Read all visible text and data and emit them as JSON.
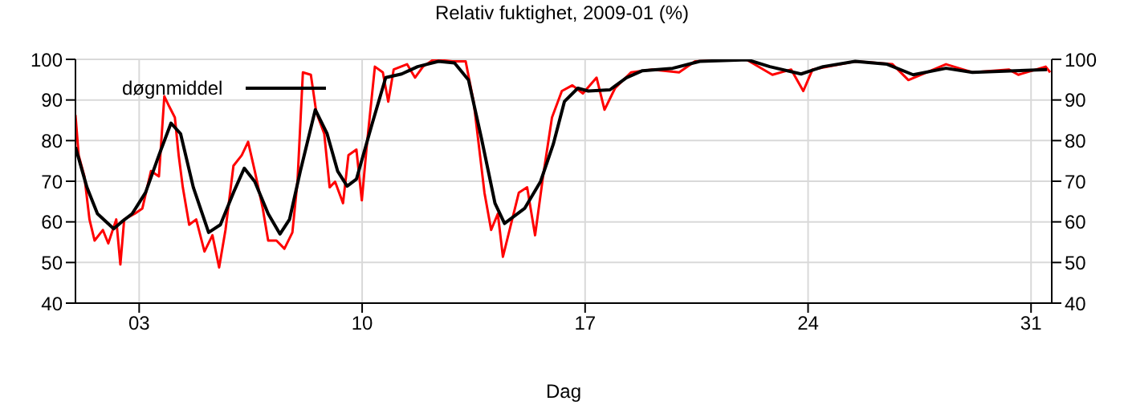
{
  "chart_data": {
    "type": "line",
    "title": "Relativ fuktighet, 2009-01 (%)",
    "xlabel": "Dag",
    "xlim": [
      1,
      31.65
    ],
    "xticks": [
      {
        "value": 3,
        "label": "03"
      },
      {
        "value": 10,
        "label": "10"
      },
      {
        "value": 17,
        "label": "17"
      },
      {
        "value": 24,
        "label": "24"
      },
      {
        "value": 31,
        "label": "31"
      }
    ],
    "ylim": [
      40,
      100
    ],
    "yticks": [
      40,
      50,
      60,
      70,
      80,
      90,
      100
    ],
    "y2lim": [
      40,
      100
    ],
    "y2ticks": [
      40,
      50,
      60,
      70,
      80,
      90,
      100
    ],
    "grid": true,
    "legend": "top left",
    "line_style": "solid",
    "marker": "none",
    "series": [
      {
        "color": "#ff0000",
        "x": [
          1.0,
          1.1,
          1.28,
          1.44,
          1.6,
          1.86,
          2.03,
          2.28,
          2.41,
          2.53,
          2.86,
          3.1,
          3.37,
          3.62,
          3.79,
          3.95,
          4.12,
          4.24,
          4.37,
          4.57,
          4.79,
          5.05,
          5.3,
          5.51,
          5.71,
          5.96,
          6.22,
          6.42,
          6.63,
          6.88,
          7.05,
          7.31,
          7.56,
          7.81,
          7.97,
          8.14,
          8.39,
          8.56,
          8.81,
          8.98,
          9.15,
          9.4,
          9.57,
          9.82,
          9.99,
          10.15,
          10.4,
          10.65,
          10.82,
          10.99,
          11.41,
          11.66,
          11.91,
          12.25,
          12.83,
          13.25,
          13.5,
          13.84,
          14.05,
          14.26,
          14.42,
          14.67,
          14.92,
          15.18,
          15.43,
          15.68,
          15.96,
          16.27,
          16.6,
          16.93,
          17.36,
          17.61,
          17.94,
          18.44,
          19.11,
          19.95,
          20.45,
          22.05,
          22.88,
          23.47,
          23.85,
          24.14,
          25.48,
          26.65,
          27.15,
          28.33,
          29.16,
          30.3,
          30.6,
          31.46,
          31.6
        ],
        "values": [
          86.3,
          76.4,
          71.2,
          60.6,
          55.4,
          58,
          54.7,
          60.6,
          49.5,
          60.6,
          62,
          63.3,
          72.5,
          71.2,
          90.9,
          88.3,
          85.7,
          76.4,
          68.5,
          59.3,
          60.6,
          52.7,
          56.7,
          48.8,
          58,
          73.8,
          76.4,
          79.7,
          72.5,
          63.3,
          55.4,
          55.4,
          53.4,
          57.4,
          69.9,
          96.8,
          96.2,
          87,
          81.7,
          68.5,
          69.9,
          64.6,
          76.4,
          77.8,
          65.3,
          79.1,
          98.2,
          96.8,
          89.6,
          97.5,
          98.8,
          95.5,
          98.2,
          100,
          99.5,
          99.5,
          89.6,
          67.2,
          58,
          62,
          51.4,
          59.3,
          67.2,
          68.5,
          56.7,
          71.2,
          85.7,
          92.2,
          93.6,
          91.6,
          95.5,
          87.6,
          92.9,
          96.8,
          97.5,
          96.8,
          99.5,
          100,
          96.2,
          97.5,
          92.2,
          97.5,
          99.5,
          98.8,
          94.9,
          98.8,
          96.8,
          97.5,
          96.2,
          98.2,
          96.8
        ]
      },
      {
        "name": "døgnmiddel",
        "color": "#000000",
        "x": [
          1.0,
          1.36,
          1.69,
          2.2,
          2.45,
          2.78,
          3.2,
          3.62,
          4.0,
          4.3,
          4.7,
          5.18,
          5.55,
          5.96,
          6.3,
          6.63,
          7.05,
          7.42,
          7.72,
          8.06,
          8.53,
          8.9,
          9.23,
          9.53,
          9.82,
          10.32,
          10.74,
          11.24,
          11.74,
          12.4,
          12.9,
          13.34,
          13.75,
          14.17,
          14.47,
          15.1,
          15.6,
          16.0,
          16.35,
          16.77,
          17.1,
          17.78,
          18.3,
          18.8,
          19.75,
          20.6,
          22.1,
          22.8,
          23.78,
          24.47,
          25.48,
          26.48,
          27.3,
          28.33,
          29.16,
          30.5,
          31.5
        ],
        "values": [
          78.4,
          68.5,
          62,
          58.3,
          60,
          62,
          67.2,
          76.4,
          84.3,
          81.7,
          68.5,
          57.4,
          59.3,
          67.2,
          73.2,
          69.9,
          62,
          57,
          60.6,
          72.5,
          87.6,
          81.7,
          72.5,
          68.8,
          70.5,
          84.3,
          95.5,
          96.4,
          98.2,
          99.5,
          99.1,
          94.9,
          80.4,
          64.6,
          59.6,
          63.3,
          69.9,
          79.1,
          89.6,
          92.9,
          92.2,
          92.5,
          95.5,
          97.2,
          97.8,
          99.5,
          99.9,
          98.2,
          96.4,
          98.2,
          99.5,
          98.8,
          96.2,
          97.8,
          96.8,
          97.2,
          97.5
        ]
      }
    ]
  }
}
